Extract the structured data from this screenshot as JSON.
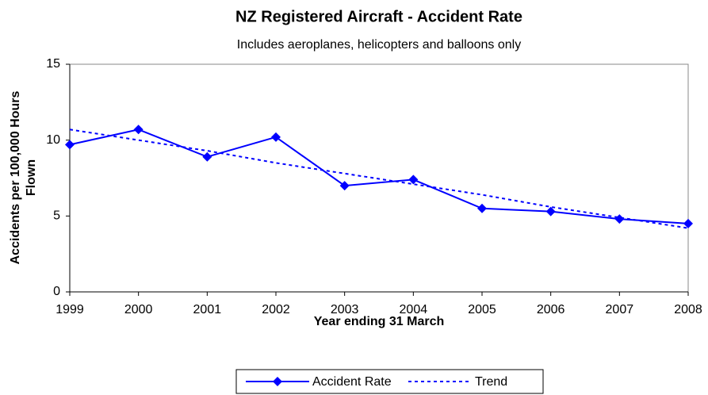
{
  "chart_data": {
    "type": "line",
    "title": "NZ Registered Aircraft - Accident Rate",
    "subtitle": "Includes aeroplanes, helicopters and balloons only",
    "x_label": "Year ending 31 March",
    "y_label": [
      "Accidents per 100,000 Hours",
      "Flown"
    ],
    "categories": [
      "1999",
      "2000",
      "2001",
      "2002",
      "2003",
      "2004",
      "2005",
      "2006",
      "2007",
      "2008"
    ],
    "series": [
      {
        "name": "Accident Rate",
        "color": "#0000ff",
        "style": "solid",
        "marker": "diamond",
        "values": [
          9.7,
          10.7,
          8.9,
          10.2,
          7.0,
          7.4,
          5.5,
          5.3,
          4.8,
          4.5
        ]
      },
      {
        "name": "Trend",
        "color": "#0000ff",
        "style": "dotted",
        "marker": "none",
        "values": [
          10.7,
          10.0,
          9.3,
          8.5,
          7.8,
          7.1,
          6.4,
          5.6,
          4.9,
          4.2
        ]
      }
    ],
    "ylim": [
      0,
      15
    ],
    "yticks": [
      0,
      5,
      10,
      15
    ],
    "grid": false,
    "legend": "bottom"
  }
}
